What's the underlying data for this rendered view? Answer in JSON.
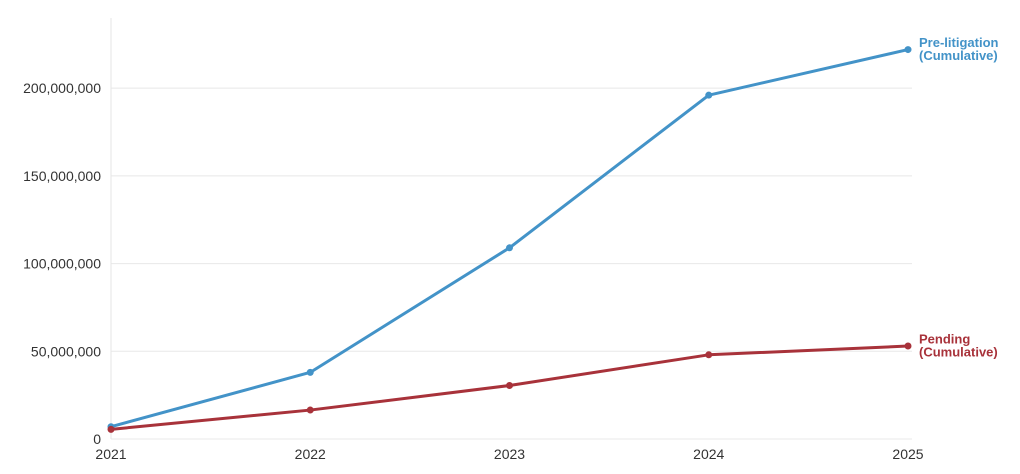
{
  "chart_data": {
    "type": "line",
    "title": "",
    "xlabel": "",
    "ylabel": "",
    "x": [
      "2021",
      "2022",
      "2023",
      "2024",
      "2025"
    ],
    "ylim": [
      0,
      240000000
    ],
    "yticks": [
      {
        "value": 0,
        "label": "0"
      },
      {
        "value": 50000000,
        "label": "50,000,000"
      },
      {
        "value": 100000000,
        "label": "100,000,000"
      },
      {
        "value": 150000000,
        "label": "150,000,000"
      },
      {
        "value": 200000000,
        "label": "200,000,000"
      }
    ],
    "grid": true,
    "legend": "end-of-line labels",
    "series": [
      {
        "name": "Pre-litigation (Cumulative)",
        "label_lines": [
          "Pre-litigation",
          "(Cumulative)"
        ],
        "color": "#4393c8",
        "values": [
          7000000,
          38000000,
          109000000,
          196000000,
          222000000
        ]
      },
      {
        "name": "Pending (Cumulative)",
        "label_lines": [
          "Pending",
          "(Cumulative)"
        ],
        "color": "#a8323a",
        "values": [
          5500000,
          16500000,
          30500000,
          48000000,
          53000000
        ]
      }
    ]
  }
}
